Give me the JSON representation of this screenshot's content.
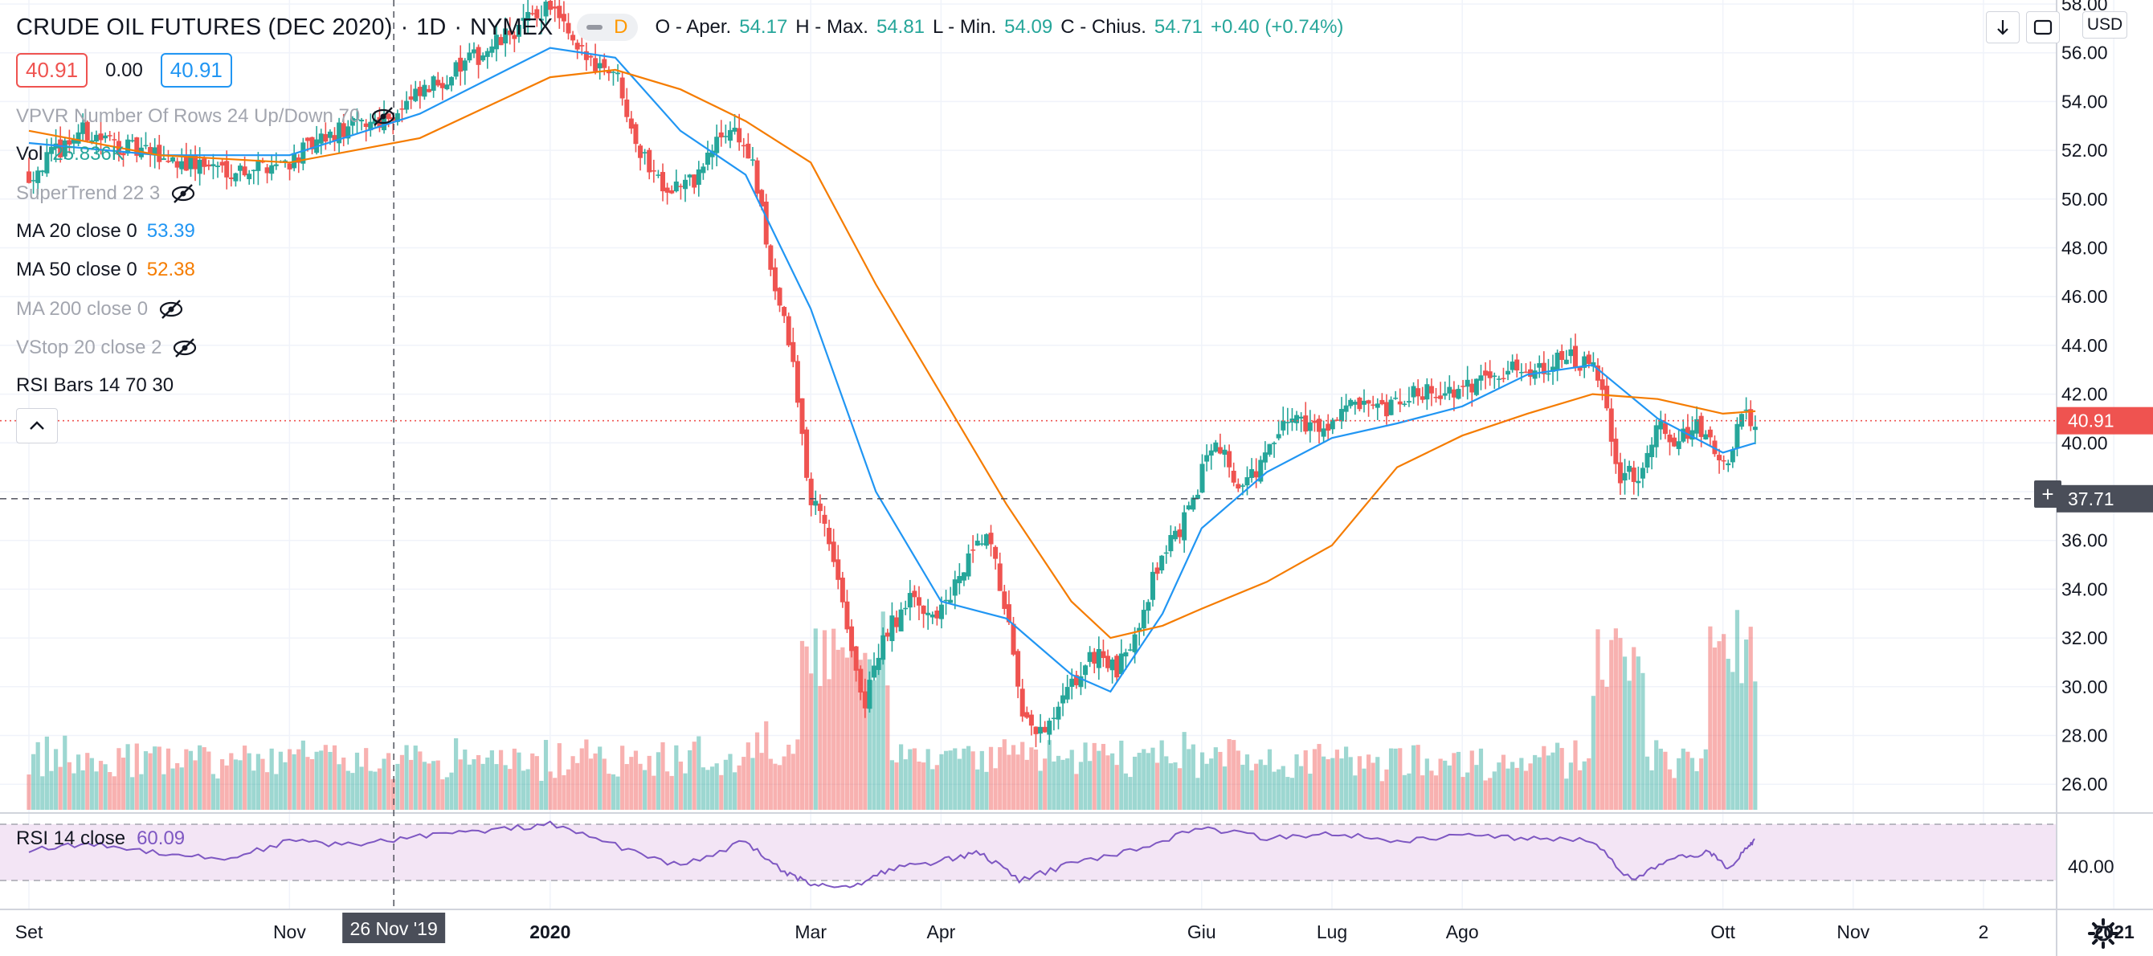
{
  "header": {
    "title": "CRUDE OIL FUTURES (DEC 2020)",
    "interval": "1D",
    "exchange": "NYMEX",
    "flag": "D",
    "ohlc": {
      "open_label": "O - Aper.",
      "open": "54.17",
      "high_label": "H - Max.",
      "high": "54.81",
      "low_label": "L - Min.",
      "low": "54.09",
      "close_label": "C - Chius.",
      "close": "54.71",
      "change": "+0.40 (+0.74%)"
    }
  },
  "price_boxes": {
    "bid": "40.91",
    "spread": "0.00",
    "ask": "40.91"
  },
  "indicators": [
    {
      "label": "VPVR Number Of Rows 24 Up/Down 70",
      "value": "",
      "hidden": true
    },
    {
      "label": "Vol",
      "value": "25.836K",
      "hidden": false
    },
    {
      "label": "SuperTrend 22 3",
      "value": "",
      "hidden": true
    },
    {
      "label": "MA 20 close 0",
      "value": "53.39",
      "hidden": false
    },
    {
      "label": "MA 50 close 0",
      "value": "52.38",
      "hidden": false
    },
    {
      "label": "MA 200 close 0",
      "value": "",
      "hidden": true
    },
    {
      "label": "VStop 20 close 2",
      "value": "",
      "hidden": true
    },
    {
      "label": "RSI Bars 14 70 30",
      "value": "",
      "hidden": false
    }
  ],
  "rsi_legend": {
    "label": "RSI 14 close",
    "value": "60.09"
  },
  "toolbar": {
    "currency": "USD",
    "plus": "+"
  },
  "colors": {
    "up": "#26a69a",
    "down": "#ef5350",
    "ma20": "#2196f3",
    "ma50": "#f57c00",
    "rsi": "#7e57c2",
    "rsi_band": "#f3e5f5",
    "crosshair": "#434651"
  },
  "chart_data": {
    "type": "candlestick",
    "title": "CRUDE OIL FUTURES (DEC 2020)",
    "price_axis": {
      "ticks": [
        26,
        28,
        30,
        32,
        34,
        36,
        38,
        40,
        42,
        44,
        46,
        48,
        50,
        52,
        54,
        56,
        58
      ],
      "tick_labels": [
        "26.00",
        "28.00",
        "30.00",
        "32.00",
        "34.00",
        "36.00",
        "38.00",
        "40.00",
        "42.00",
        "44.00",
        "46.00",
        "48.00",
        "50.00",
        "52.00",
        "54.00",
        "56.00",
        "58.00"
      ],
      "last_price": "40.91",
      "crosshair_price": "37.71"
    },
    "time_axis": {
      "labels": [
        {
          "text": "Set",
          "t": 0.0
        },
        {
          "text": "Nov",
          "t": 2.0
        },
        {
          "text": "2020",
          "t": 4.0
        },
        {
          "text": "Mar",
          "t": 6.0
        },
        {
          "text": "Apr",
          "t": 7.0
        },
        {
          "text": "Giu",
          "t": 9.0
        },
        {
          "text": "Lug",
          "t": 10.0
        },
        {
          "text": "Ago",
          "t": 11.0
        },
        {
          "text": "Ott",
          "t": 13.0
        },
        {
          "text": "Nov",
          "t": 14.0
        },
        {
          "text": "2",
          "t": 15.0
        },
        {
          "text": "2021",
          "t": 16.0
        }
      ],
      "crosshair_label": "26 Nov '19",
      "crosshair_t": 2.8
    },
    "series_path": [
      {
        "t": 0.0,
        "price": 51.0
      },
      {
        "t": 0.4,
        "price": 52.8
      },
      {
        "t": 0.8,
        "price": 52.0
      },
      {
        "t": 1.2,
        "price": 51.5
      },
      {
        "t": 1.6,
        "price": 51.2
      },
      {
        "t": 2.0,
        "price": 51.6
      },
      {
        "t": 2.4,
        "price": 52.8
      },
      {
        "t": 2.8,
        "price": 53.5
      },
      {
        "t": 3.2,
        "price": 55.0
      },
      {
        "t": 3.6,
        "price": 56.4
      },
      {
        "t": 4.0,
        "price": 58.0
      },
      {
        "t": 4.2,
        "price": 56.0
      },
      {
        "t": 4.5,
        "price": 55.3
      },
      {
        "t": 4.7,
        "price": 51.8
      },
      {
        "t": 4.9,
        "price": 50.5
      },
      {
        "t": 5.1,
        "price": 50.7
      },
      {
        "t": 5.3,
        "price": 52.5
      },
      {
        "t": 5.4,
        "price": 53.0
      },
      {
        "t": 5.55,
        "price": 51.5
      },
      {
        "t": 5.7,
        "price": 47.0
      },
      {
        "t": 5.85,
        "price": 43.7
      },
      {
        "t": 6.0,
        "price": 37.5
      },
      {
        "t": 6.1,
        "price": 37.0
      },
      {
        "t": 6.25,
        "price": 33.5
      },
      {
        "t": 6.4,
        "price": 29.0
      },
      {
        "t": 6.55,
        "price": 32.0
      },
      {
        "t": 6.75,
        "price": 33.5
      },
      {
        "t": 7.0,
        "price": 33.0
      },
      {
        "t": 7.2,
        "price": 35.0
      },
      {
        "t": 7.35,
        "price": 36.2
      },
      {
        "t": 7.5,
        "price": 33.2
      },
      {
        "t": 7.62,
        "price": 28.5
      },
      {
        "t": 7.8,
        "price": 28.0
      },
      {
        "t": 8.0,
        "price": 30.0
      },
      {
        "t": 8.2,
        "price": 31.5
      },
      {
        "t": 8.35,
        "price": 30.5
      },
      {
        "t": 8.5,
        "price": 32.5
      },
      {
        "t": 8.7,
        "price": 35.5
      },
      {
        "t": 8.9,
        "price": 37.0
      },
      {
        "t": 9.1,
        "price": 40.5
      },
      {
        "t": 9.3,
        "price": 38.0
      },
      {
        "t": 9.5,
        "price": 39.5
      },
      {
        "t": 9.7,
        "price": 41.2
      },
      {
        "t": 9.9,
        "price": 40.5
      },
      {
        "t": 10.1,
        "price": 41.5
      },
      {
        "t": 10.4,
        "price": 41.2
      },
      {
        "t": 10.7,
        "price": 42.2
      },
      {
        "t": 11.0,
        "price": 42.0
      },
      {
        "t": 11.2,
        "price": 43.0
      },
      {
        "t": 11.5,
        "price": 43.0
      },
      {
        "t": 11.8,
        "price": 43.5
      },
      {
        "t": 12.0,
        "price": 43.0
      },
      {
        "t": 12.1,
        "price": 41.5
      },
      {
        "t": 12.2,
        "price": 38.5
      },
      {
        "t": 12.35,
        "price": 38.8
      },
      {
        "t": 12.5,
        "price": 41.0
      },
      {
        "t": 12.65,
        "price": 40.0
      },
      {
        "t": 12.8,
        "price": 40.7
      },
      {
        "t": 13.0,
        "price": 39.0
      },
      {
        "t": 13.15,
        "price": 41.0
      },
      {
        "t": 13.25,
        "price": 40.9
      }
    ],
    "ma20": [
      {
        "t": 0.0,
        "price": 52.3
      },
      {
        "t": 1.0,
        "price": 51.8
      },
      {
        "t": 2.0,
        "price": 51.8
      },
      {
        "t": 3.0,
        "price": 53.5
      },
      {
        "t": 4.0,
        "price": 56.2
      },
      {
        "t": 4.5,
        "price": 55.8
      },
      {
        "t": 5.0,
        "price": 52.8
      },
      {
        "t": 5.5,
        "price": 51.0
      },
      {
        "t": 6.0,
        "price": 45.5
      },
      {
        "t": 6.5,
        "price": 38.0
      },
      {
        "t": 7.0,
        "price": 33.5
      },
      {
        "t": 7.5,
        "price": 32.8
      },
      {
        "t": 8.0,
        "price": 30.5
      },
      {
        "t": 8.3,
        "price": 29.8
      },
      {
        "t": 8.7,
        "price": 33.0
      },
      {
        "t": 9.0,
        "price": 36.5
      },
      {
        "t": 9.5,
        "price": 38.8
      },
      {
        "t": 10.0,
        "price": 40.2
      },
      {
        "t": 10.5,
        "price": 40.8
      },
      {
        "t": 11.0,
        "price": 41.5
      },
      {
        "t": 11.5,
        "price": 42.8
      },
      {
        "t": 12.0,
        "price": 43.2
      },
      {
        "t": 12.5,
        "price": 41.0
      },
      {
        "t": 13.0,
        "price": 39.6
      },
      {
        "t": 13.25,
        "price": 40.0
      }
    ],
    "ma50": [
      {
        "t": 0.0,
        "price": 52.8
      },
      {
        "t": 1.0,
        "price": 51.8
      },
      {
        "t": 2.0,
        "price": 51.5
      },
      {
        "t": 3.0,
        "price": 52.5
      },
      {
        "t": 4.0,
        "price": 55.0
      },
      {
        "t": 4.5,
        "price": 55.3
      },
      {
        "t": 5.0,
        "price": 54.5
      },
      {
        "t": 5.5,
        "price": 53.2
      },
      {
        "t": 6.0,
        "price": 51.5
      },
      {
        "t": 6.5,
        "price": 46.5
      },
      {
        "t": 7.0,
        "price": 42.0
      },
      {
        "t": 7.5,
        "price": 37.5
      },
      {
        "t": 8.0,
        "price": 33.5
      },
      {
        "t": 8.3,
        "price": 32.0
      },
      {
        "t": 8.7,
        "price": 32.5
      },
      {
        "t": 9.0,
        "price": 33.2
      },
      {
        "t": 9.5,
        "price": 34.3
      },
      {
        "t": 10.0,
        "price": 35.8
      },
      {
        "t": 10.5,
        "price": 39.0
      },
      {
        "t": 11.0,
        "price": 40.3
      },
      {
        "t": 11.5,
        "price": 41.2
      },
      {
        "t": 12.0,
        "price": 42.0
      },
      {
        "t": 12.5,
        "price": 41.8
      },
      {
        "t": 13.0,
        "price": 41.2
      },
      {
        "t": 13.25,
        "price": 41.3
      }
    ],
    "rsi": {
      "label": "RSI 14 close",
      "value": "60.09",
      "tick": "40.00",
      "band": [
        30,
        70
      ],
      "points": [
        {
          "t": 0.0,
          "v": 52
        },
        {
          "t": 0.5,
          "v": 56
        },
        {
          "t": 1.0,
          "v": 50
        },
        {
          "t": 1.5,
          "v": 45
        },
        {
          "t": 2.0,
          "v": 58
        },
        {
          "t": 2.5,
          "v": 55
        },
        {
          "t": 3.0,
          "v": 62
        },
        {
          "t": 3.5,
          "v": 65
        },
        {
          "t": 4.0,
          "v": 70
        },
        {
          "t": 4.5,
          "v": 55
        },
        {
          "t": 5.0,
          "v": 40
        },
        {
          "t": 5.5,
          "v": 58
        },
        {
          "t": 5.8,
          "v": 35
        },
        {
          "t": 6.0,
          "v": 28
        },
        {
          "t": 6.3,
          "v": 25
        },
        {
          "t": 6.6,
          "v": 38
        },
        {
          "t": 7.0,
          "v": 44
        },
        {
          "t": 7.3,
          "v": 50
        },
        {
          "t": 7.6,
          "v": 30
        },
        {
          "t": 8.0,
          "v": 42
        },
        {
          "t": 8.5,
          "v": 52
        },
        {
          "t": 9.0,
          "v": 68
        },
        {
          "t": 9.5,
          "v": 60
        },
        {
          "t": 10.0,
          "v": 64
        },
        {
          "t": 10.5,
          "v": 58
        },
        {
          "t": 11.0,
          "v": 62
        },
        {
          "t": 11.5,
          "v": 60
        },
        {
          "t": 12.0,
          "v": 58
        },
        {
          "t": 12.3,
          "v": 30
        },
        {
          "t": 12.6,
          "v": 45
        },
        {
          "t": 12.9,
          "v": 50
        },
        {
          "t": 13.05,
          "v": 38
        },
        {
          "t": 13.2,
          "v": 55
        },
        {
          "t": 13.25,
          "v": 60
        }
      ]
    }
  }
}
